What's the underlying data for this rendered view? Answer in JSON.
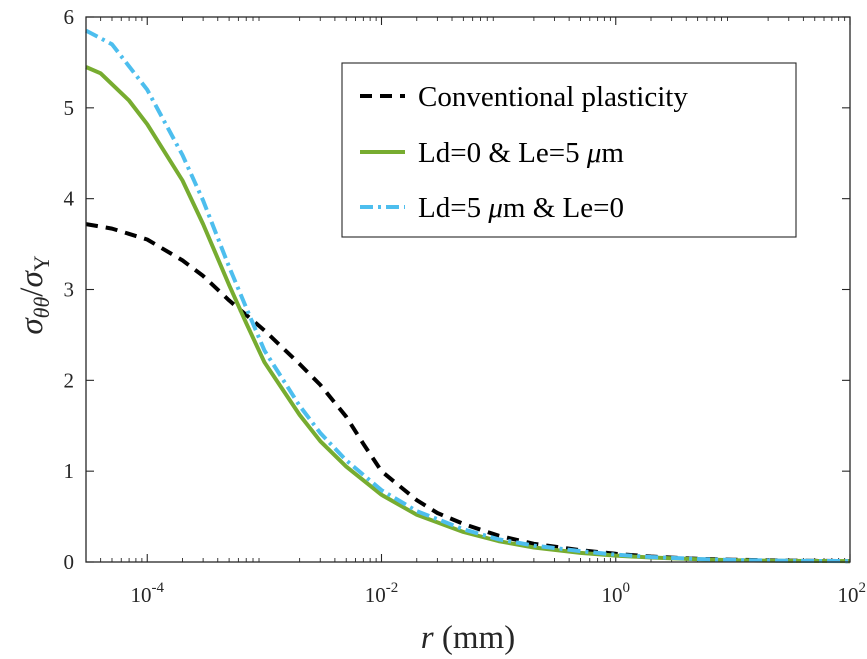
{
  "chart_data": {
    "type": "line",
    "x_scale": "log",
    "xlim": [
      3e-05,
      100
    ],
    "ylim": [
      0,
      6
    ],
    "xticks": [
      {
        "base": "10",
        "exp": "-4",
        "value": 0.0001
      },
      {
        "base": "10",
        "exp": "-2",
        "value": 0.01
      },
      {
        "base": "10",
        "exp": "0",
        "value": 1
      },
      {
        "base": "10",
        "exp": "2",
        "value": 100
      }
    ],
    "yticks": [
      "0",
      "1",
      "2",
      "3",
      "4",
      "5",
      "6"
    ],
    "xlabel": {
      "symbol": "r",
      "unit": "(mm)"
    },
    "ylabel": {
      "num": "σ",
      "num_sub": "θθ",
      "den": "σ",
      "den_sub": "Y"
    },
    "legend_position": "top-right",
    "grid": false,
    "series": [
      {
        "name": "Conventional plasticity",
        "color": "#000000",
        "dash": "dashed",
        "points": [
          [
            3e-05,
            3.72
          ],
          [
            5e-05,
            3.67
          ],
          [
            0.0001,
            3.55
          ],
          [
            0.0002,
            3.32
          ],
          [
            0.0003,
            3.15
          ],
          [
            0.0005,
            2.88
          ],
          [
            0.001,
            2.55
          ],
          [
            0.002,
            2.18
          ],
          [
            0.003,
            1.95
          ],
          [
            0.005,
            1.6
          ],
          [
            0.007,
            1.3
          ],
          [
            0.01,
            1.0
          ],
          [
            0.02,
            0.68
          ],
          [
            0.03,
            0.54
          ],
          [
            0.05,
            0.42
          ],
          [
            0.1,
            0.29
          ],
          [
            0.2,
            0.2
          ],
          [
            0.5,
            0.13
          ],
          [
            1,
            0.09
          ],
          [
            2,
            0.06
          ],
          [
            5,
            0.035
          ],
          [
            10,
            0.025
          ],
          [
            30,
            0.015
          ],
          [
            100,
            0.01
          ]
        ]
      },
      {
        "name": "Ld=0 & Le=5 μm",
        "color": "#77AC30",
        "dash": "solid",
        "points": [
          [
            3e-05,
            5.45
          ],
          [
            4e-05,
            5.38
          ],
          [
            7e-05,
            5.08
          ],
          [
            0.0001,
            4.82
          ],
          [
            0.0002,
            4.2
          ],
          [
            0.0003,
            3.72
          ],
          [
            0.0005,
            3.05
          ],
          [
            0.0007,
            2.63
          ],
          [
            0.001,
            2.2
          ],
          [
            0.002,
            1.62
          ],
          [
            0.003,
            1.33
          ],
          [
            0.005,
            1.05
          ],
          [
            0.01,
            0.74
          ],
          [
            0.02,
            0.52
          ],
          [
            0.05,
            0.33
          ],
          [
            0.1,
            0.23
          ],
          [
            0.2,
            0.16
          ],
          [
            0.5,
            0.1
          ],
          [
            1,
            0.07
          ],
          [
            2,
            0.05
          ],
          [
            5,
            0.03
          ],
          [
            10,
            0.02
          ],
          [
            30,
            0.012
          ],
          [
            100,
            0.01
          ]
        ]
      },
      {
        "name": "Ld=5 μm & Le=0",
        "color": "#4DBEEE",
        "dash": "dashdot",
        "points": [
          [
            3e-05,
            5.85
          ],
          [
            5e-05,
            5.7
          ],
          [
            0.0001,
            5.2
          ],
          [
            0.0002,
            4.48
          ],
          [
            0.0003,
            3.98
          ],
          [
            0.0005,
            3.25
          ],
          [
            0.0007,
            2.8
          ],
          [
            0.001,
            2.33
          ],
          [
            0.002,
            1.72
          ],
          [
            0.003,
            1.42
          ],
          [
            0.005,
            1.12
          ],
          [
            0.01,
            0.79
          ],
          [
            0.02,
            0.56
          ],
          [
            0.05,
            0.36
          ],
          [
            0.1,
            0.25
          ],
          [
            0.2,
            0.18
          ],
          [
            0.5,
            0.12
          ],
          [
            1,
            0.08
          ],
          [
            2,
            0.055
          ],
          [
            5,
            0.033
          ],
          [
            10,
            0.022
          ],
          [
            30,
            0.013
          ],
          [
            100,
            0.01
          ]
        ]
      }
    ]
  }
}
